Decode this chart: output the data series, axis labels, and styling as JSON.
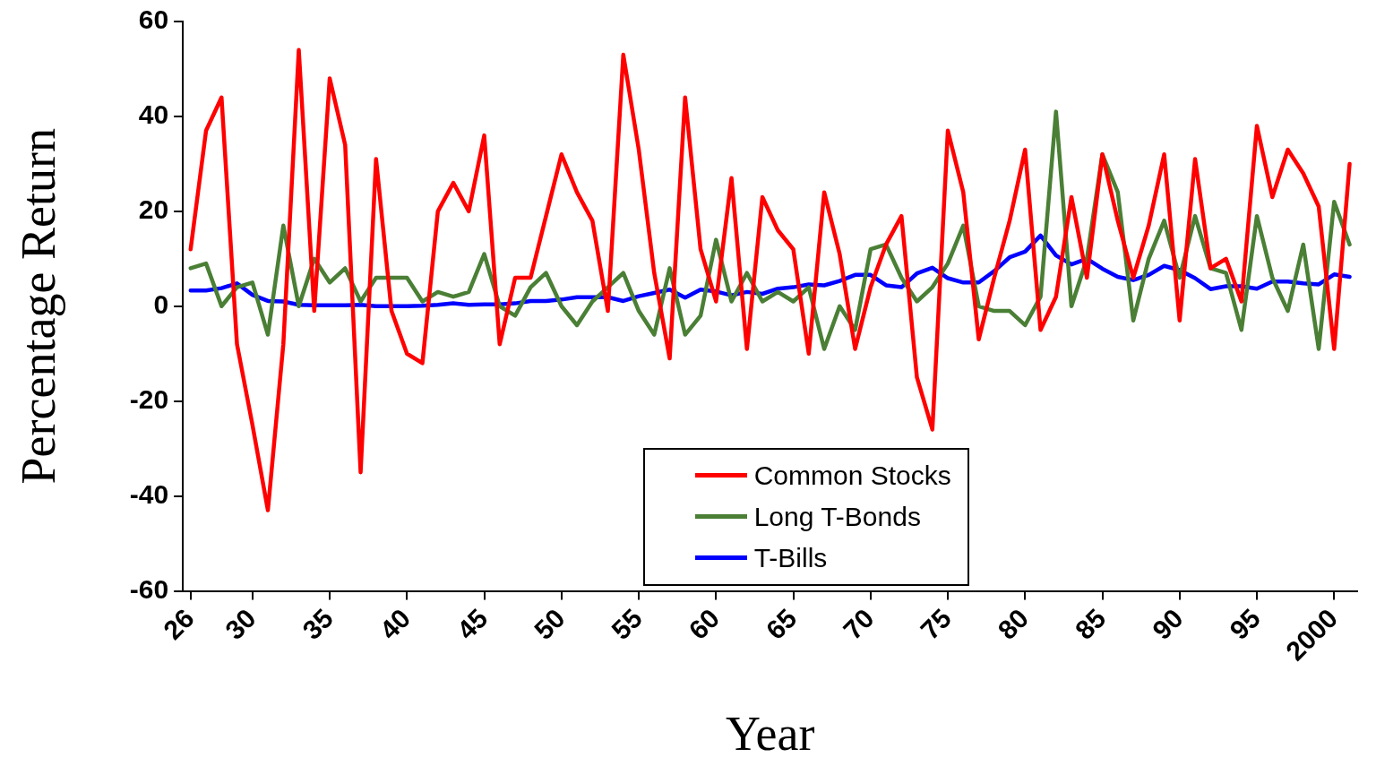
{
  "chart_data": {
    "type": "line",
    "xlabel": "Year",
    "ylabel": "Percentage Return",
    "categories": [
      "26",
      null,
      null,
      null,
      "30",
      null,
      null,
      null,
      null,
      "35",
      null,
      null,
      null,
      null,
      "40",
      null,
      null,
      null,
      null,
      "45",
      null,
      null,
      null,
      null,
      "50",
      null,
      null,
      null,
      null,
      "55",
      null,
      null,
      null,
      null,
      "60",
      null,
      null,
      null,
      null,
      "65",
      null,
      null,
      null,
      null,
      "70",
      null,
      null,
      null,
      null,
      "75",
      null,
      null,
      null,
      null,
      "80",
      null,
      null,
      null,
      null,
      "85",
      null,
      null,
      null,
      null,
      "90",
      null,
      null,
      null,
      null,
      "95",
      null,
      null,
      null,
      null,
      "2000",
      null
    ],
    "series": [
      {
        "name": "Common Stocks",
        "color": "#ff0000",
        "values": [
          12,
          37,
          44,
          -8,
          -25,
          -43,
          -8,
          54,
          -1,
          48,
          34,
          -35,
          31,
          -1,
          -10,
          -12,
          20,
          26,
          20,
          36,
          -8,
          6,
          6,
          19,
          32,
          24,
          18,
          -1,
          53,
          33,
          7,
          -11,
          44,
          12,
          1,
          27,
          -9,
          23,
          16,
          12,
          -10,
          24,
          11,
          -9,
          4,
          13,
          19,
          -15,
          -26,
          37,
          24,
          -7,
          6,
          18,
          33,
          -5,
          2,
          23,
          6,
          32,
          18,
          6,
          17,
          32,
          -3,
          31,
          8,
          10,
          1,
          38,
          23,
          33,
          28,
          21,
          -9,
          30
        ]
      },
      {
        "name": "Long T-Bonds",
        "color": "#4a7f35",
        "values": [
          8,
          9,
          0,
          4,
          5,
          -6,
          17,
          0,
          10,
          5,
          8,
          1,
          6,
          6,
          6,
          1,
          3,
          2,
          3,
          11,
          0,
          -2,
          4,
          7,
          0,
          -4,
          1,
          4,
          7,
          -1,
          -6,
          8,
          -6,
          -2,
          14,
          1,
          7,
          1,
          3,
          1,
          4,
          -9,
          0,
          -5,
          12,
          13,
          6,
          1,
          4,
          9,
          17,
          0,
          -1,
          -1,
          -4,
          2,
          41,
          0,
          10,
          32,
          24,
          -3,
          10,
          18,
          6,
          19,
          8,
          7,
          -5,
          19,
          6,
          -1,
          13,
          -9,
          22,
          13
        ]
      },
      {
        "name": "T-Bills",
        "color": "#0000ff",
        "values": [
          3.3,
          3.3,
          3.8,
          4.8,
          2.4,
          1.1,
          1,
          0.3,
          0.2,
          0.2,
          0.2,
          0.3,
          0,
          0,
          0,
          0.1,
          0.3,
          0.6,
          0.3,
          0.4,
          0.4,
          0.6,
          1.1,
          1.1,
          1.4,
          1.9,
          1.9,
          1.9,
          1.1,
          2.1,
          2.8,
          3.5,
          1.8,
          3.5,
          3.1,
          2.3,
          3,
          2.6,
          3.7,
          4,
          4.6,
          4.4,
          5.3,
          6.6,
          6.6,
          4.4,
          4,
          6.9,
          8.1,
          5.9,
          5,
          5,
          7.4,
          10.3,
          11.5,
          14.9,
          10.7,
          8.8,
          10,
          7.9,
          6.2,
          5.5,
          6.6,
          8.5,
          7.6,
          5.9,
          3.6,
          4.2,
          4.2,
          3.7,
          5.2,
          5.2,
          4.8,
          4.6,
          6.7,
          6.2
        ]
      }
    ],
    "ylim": [
      -60,
      60
    ],
    "yticks": [
      -60,
      -40,
      -20,
      0,
      20,
      40,
      60
    ],
    "grid": false,
    "legend": "bottom",
    "marker": "none",
    "line_style": "solid"
  }
}
